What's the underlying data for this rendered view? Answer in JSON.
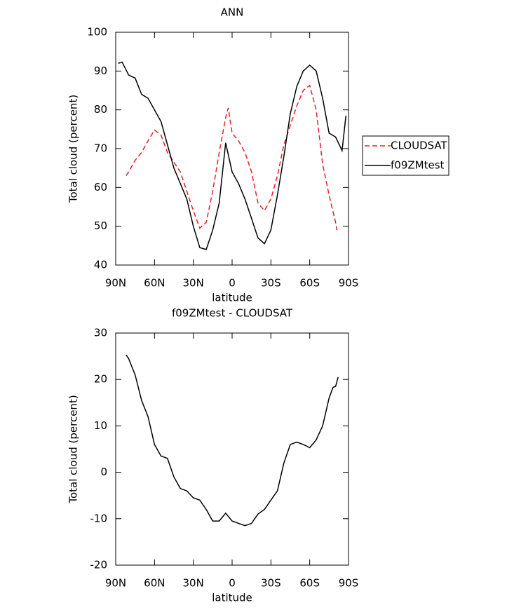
{
  "chart_data": [
    {
      "type": "line",
      "title": "ANN",
      "xlabel": "latitude",
      "ylabel": "Total cloud (percent)",
      "xlim": [
        90,
        -90
      ],
      "xticks": [
        {
          "value": 90,
          "label": "90N"
        },
        {
          "value": 60,
          "label": "60N"
        },
        {
          "value": 30,
          "label": "30N"
        },
        0,
        {
          "value": -30,
          "label": "30S"
        },
        {
          "value": -60,
          "label": "60S"
        },
        {
          "value": -90,
          "label": "90S"
        }
      ],
      "ylim": [
        40,
        100
      ],
      "yticks": [
        40,
        50,
        60,
        70,
        80,
        90,
        100
      ],
      "legend": "right",
      "series": [
        {
          "name": "CLOUDSAT",
          "color": "#e8202a",
          "line_style": "dashed",
          "x": [
            82,
            80,
            75,
            70,
            65,
            60,
            55,
            50,
            45,
            40,
            35,
            30,
            25,
            20,
            15,
            10,
            5,
            3,
            0,
            -5,
            -10,
            -15,
            -20,
            -25,
            -30,
            -35,
            -40,
            -45,
            -50,
            -55,
            -60,
            -65,
            -70,
            -75,
            -80,
            -81
          ],
          "values": [
            63,
            64,
            67,
            69,
            72,
            74.8,
            73.5,
            69,
            66.5,
            64,
            59,
            54,
            49.5,
            51,
            59,
            69,
            78,
            80.5,
            74,
            72,
            69,
            64,
            56,
            54,
            57,
            63,
            71,
            76,
            81,
            85,
            86.3,
            80,
            66,
            58,
            51,
            49
          ]
        },
        {
          "name": "f09ZMtest",
          "color": "#000000",
          "line_style": "solid",
          "x": [
            88,
            85,
            80,
            75,
            70,
            65,
            60,
            55,
            50,
            45,
            40,
            35,
            30,
            25,
            20,
            15,
            10,
            5,
            0,
            -5,
            -10,
            -15,
            -20,
            -25,
            -30,
            -35,
            -40,
            -45,
            -50,
            -55,
            -60,
            -65,
            -70,
            -75,
            -80,
            -85,
            -88
          ],
          "values": [
            92,
            92.3,
            89,
            88.2,
            84,
            83,
            80,
            77,
            71,
            65,
            61,
            57,
            50,
            44.5,
            44,
            49,
            56,
            71.5,
            64,
            61,
            57,
            52,
            47,
            45.5,
            49,
            58,
            68,
            79,
            86,
            90,
            91.5,
            90,
            83,
            74,
            73,
            69.5,
            78.5
          ]
        }
      ]
    },
    {
      "type": "line",
      "title": "f09ZMtest - CLOUDSAT",
      "xlabel": "latitude",
      "ylabel": "Total cloud (percent)",
      "xlim": [
        90,
        -90
      ],
      "xticks": [
        {
          "value": 90,
          "label": "90N"
        },
        {
          "value": 60,
          "label": "60N"
        },
        {
          "value": 30,
          "label": "30N"
        },
        0,
        {
          "value": -30,
          "label": "30S"
        },
        {
          "value": -60,
          "label": "60S"
        },
        {
          "value": -90,
          "label": "90S"
        }
      ],
      "ylim": [
        -20,
        30
      ],
      "yticks": [
        -20,
        -10,
        0,
        10,
        20,
        30
      ],
      "series": [
        {
          "color": "#000000",
          "line_style": "solid",
          "x": [
            82,
            80,
            75,
            70,
            65,
            60,
            55,
            50,
            45,
            40,
            35,
            30,
            25,
            20,
            15,
            10,
            5,
            0,
            -5,
            -10,
            -15,
            -20,
            -25,
            -30,
            -35,
            -40,
            -45,
            -50,
            -55,
            -60,
            -65,
            -70,
            -75,
            -78,
            -80,
            -82
          ],
          "values": [
            25.3,
            24.5,
            21,
            15.5,
            12,
            6,
            3.5,
            3,
            -1,
            -3.5,
            -4,
            -5.5,
            -6,
            -8,
            -10.5,
            -10.5,
            -8.8,
            -10.5,
            -11,
            -11.5,
            -11,
            -9,
            -8,
            -6,
            -4,
            2,
            6,
            6.5,
            6,
            5.3,
            7,
            10,
            16,
            18.3,
            18.5,
            20.5
          ]
        }
      ]
    }
  ]
}
